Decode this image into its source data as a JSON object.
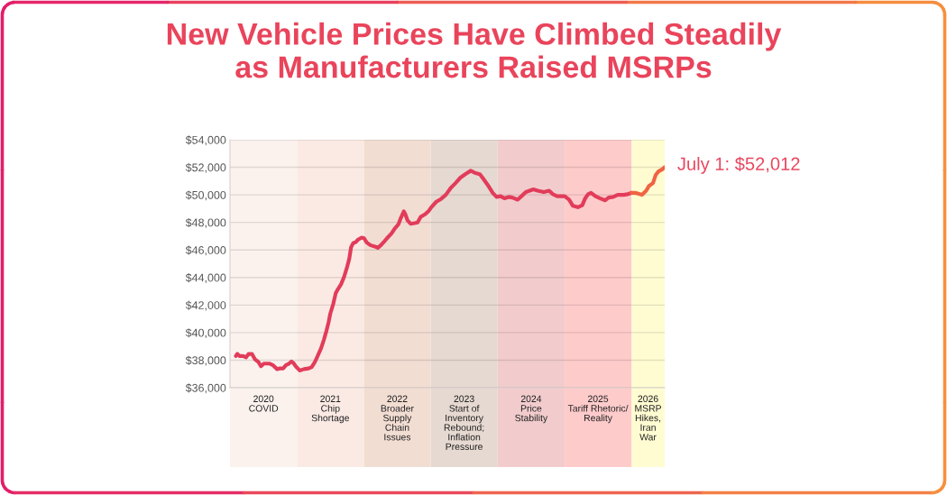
{
  "chart_data": {
    "type": "line",
    "title": "New Vehicle Prices Have Climbed Steadily\nas Manufacturers Raised MSRPs",
    "xlim": [
      "2020-01-01",
      "2026-07-01"
    ],
    "ylim": [
      36000,
      54000
    ],
    "xticks": [
      {
        "value": "2020-07-02",
        "label": "2020\nCOVID"
      },
      {
        "value": "2021-07-02",
        "label": "2021\nChip\nShortage"
      },
      {
        "value": "2022-07-02",
        "label": "2022\nBroader\nSupply\nChain\nIssues"
      },
      {
        "value": "2023-07-02",
        "label": "2023\nStart of\nInventory\nRebound;\nInflation\nPressure"
      },
      {
        "value": "2024-07-02",
        "label": "2024\nPrice\nStability"
      },
      {
        "value": "2025-07-02",
        "label": "2025\nTariff Rhetoric/\nReality"
      },
      {
        "value": "2026-04-01",
        "label": "2026\nMSRP\nHikes,\nIran\nWar"
      }
    ],
    "yticks": [
      {
        "value": 36000,
        "label": "$36,000"
      },
      {
        "value": 38000,
        "label": "$38,000"
      },
      {
        "value": 40000,
        "label": "$40,000"
      },
      {
        "value": 42000,
        "label": "$42,000"
      },
      {
        "value": 44000,
        "label": "$44,000"
      },
      {
        "value": 46000,
        "label": "$46,000"
      },
      {
        "value": 48000,
        "label": "$48,000"
      },
      {
        "value": 50000,
        "label": "$50,000"
      },
      {
        "value": 52000,
        "label": "$52,000"
      },
      {
        "value": 54000,
        "label": "$54,000"
      }
    ],
    "grid": "y",
    "bands": [
      {
        "axis": "x",
        "from": "2020-01-01",
        "to": "2021-01-01",
        "color": "#fbf2ee"
      },
      {
        "axis": "x",
        "from": "2021-01-01",
        "to": "2022-01-01",
        "color": "#fbeae4"
      },
      {
        "axis": "x",
        "from": "2022-01-01",
        "to": "2023-01-01",
        "color": "#f2ddd3"
      },
      {
        "axis": "x",
        "from": "2023-01-01",
        "to": "2024-01-01",
        "color": "#e6d9d1"
      },
      {
        "axis": "x",
        "from": "2024-01-01",
        "to": "2025-01-01",
        "color": "#f2cccd"
      },
      {
        "axis": "x",
        "from": "2025-01-01",
        "to": "2026-01-01",
        "color": "#fecbcb"
      },
      {
        "axis": "x",
        "from": "2026-01-01",
        "to": "2026-07-01",
        "color": "#fffcd2"
      }
    ],
    "annotations": [
      {
        "text": "July 1: $52,012",
        "x": "2026-07-01",
        "y": 52012
      }
    ],
    "series": [
      {
        "color": "#e23c5a",
        "x": [
          "2020-02-02",
          "2020-02-10",
          "2020-02-23",
          "2020-03-13",
          "2020-03-29",
          "2020-04-11",
          "2020-04-30",
          "2020-05-17",
          "2020-06-05",
          "2020-06-18",
          "2020-07-04",
          "2020-08-05",
          "2020-08-21",
          "2020-09-14",
          "2020-09-30",
          "2020-10-17",
          "2020-11-02",
          "2020-11-18",
          "2020-12-01",
          "2020-12-12",
          "2020-12-28",
          "2021-01-17",
          "2021-02-08",
          "2021-03-05",
          "2021-03-22",
          "2021-04-08",
          "2021-04-25",
          "2021-05-12",
          "2021-05-28",
          "2021-06-11",
          "2021-06-23",
          "2021-07-01",
          "2021-07-18",
          "2021-07-31",
          "2021-08-12",
          "2021-08-29",
          "2021-09-15",
          "2021-10-02",
          "2021-10-13",
          "2021-10-23",
          "2021-11-04",
          "2021-11-16",
          "2021-11-30",
          "2021-12-20",
          "2022-01-02",
          "2022-01-16",
          "2022-02-05",
          "2022-03-02",
          "2022-03-18",
          "2022-04-04",
          "2022-04-21",
          "2022-05-07",
          "2022-06-01",
          "2022-06-18",
          "2022-07-08",
          "2022-07-21",
          "2022-08-07",
          "2022-08-15",
          "2022-08-27",
          "2022-09-13",
          "2022-10-04",
          "2022-10-21",
          "2022-11-07",
          "2022-12-02",
          "2022-12-22",
          "2023-01-04",
          "2023-01-31",
          "2023-02-26",
          "2023-03-24",
          "2023-04-20",
          "2023-05-16",
          "2023-06-12",
          "2023-07-08",
          "2023-08-07",
          "2023-08-30",
          "2023-09-26",
          "2023-10-13",
          "2023-11-09",
          "2023-12-05",
          "2023-12-26",
          "2024-01-17",
          "2024-02-07",
          "2024-03-01",
          "2024-03-22",
          "2024-04-19",
          "2024-05-10",
          "2024-06-03",
          "2024-07-14",
          "2024-08-07",
          "2024-09-09",
          "2024-10-08",
          "2024-10-28",
          "2024-11-21",
          "2025-01-01",
          "2025-01-25",
          "2025-02-15",
          "2025-03-14",
          "2025-04-07",
          "2025-04-23",
          "2025-05-09",
          "2025-05-25",
          "2025-06-18",
          "2025-07-12",
          "2025-08-10",
          "2025-08-29",
          "2025-09-23",
          "2025-10-17",
          "2025-11-18",
          "2025-12-12",
          "2026-01-01"
        ],
        "values": [
          38300,
          38450,
          38300,
          38300,
          38200,
          38450,
          38450,
          38050,
          37850,
          37550,
          37750,
          37750,
          37650,
          37350,
          37400,
          37400,
          37650,
          37750,
          37900,
          37800,
          37500,
          37250,
          37350,
          37400,
          37500,
          37850,
          38350,
          38850,
          39500,
          40150,
          40800,
          41350,
          42100,
          42850,
          43150,
          43500,
          44050,
          44800,
          45350,
          46200,
          46500,
          46550,
          46750,
          46900,
          46850,
          46550,
          46350,
          46250,
          46150,
          46350,
          46600,
          46850,
          47200,
          47550,
          47850,
          48300,
          48800,
          48600,
          48150,
          47900,
          47950,
          48000,
          48400,
          48600,
          48850,
          49100,
          49500,
          49700,
          50000,
          50500,
          50850,
          51250,
          51500,
          51750,
          51600,
          51500,
          51200,
          50700,
          50150,
          49850,
          49900,
          49750,
          49850,
          49800,
          49650,
          49900,
          50200,
          50400,
          50300,
          50200,
          50300,
          50050,
          49900,
          49900,
          49650,
          49200,
          49100,
          49250,
          49750,
          50050,
          50150,
          49900,
          49750,
          49600,
          49800,
          49850,
          50000,
          50000,
          50050,
          50150
        ]
      },
      {
        "color": "#f06443",
        "x": [
          "2026-01-01",
          "2026-01-20",
          "2026-02-27",
          "2026-03-22",
          "2026-04-06",
          "2026-04-28",
          "2026-05-13",
          "2026-05-28",
          "2026-06-17",
          "2026-07-01"
        ],
        "values": [
          50150,
          50150,
          50000,
          50300,
          50650,
          50850,
          51450,
          51700,
          51850,
          52012
        ]
      }
    ]
  }
}
